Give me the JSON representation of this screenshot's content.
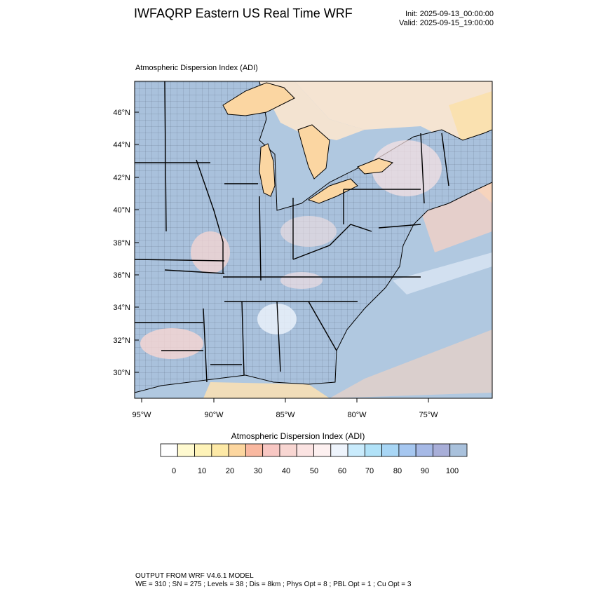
{
  "header": {
    "title": "IWFAQRP Eastern US Real Time WRF",
    "init": "Init: 2025-09-13_00:00:00",
    "valid": "Valid: 2025-09-15_19:00:00"
  },
  "map": {
    "subtitle": "Atmospheric Dispersion Index   (ADI)",
    "lat_labels": [
      "46°N",
      "44°N",
      "42°N",
      "40°N",
      "38°N",
      "36°N",
      "34°N",
      "32°N",
      "30°N"
    ],
    "lon_labels": [
      "95°W",
      "90°W",
      "85°W",
      "80°W",
      "75°W"
    ],
    "colors": {
      "ocean": "#b0c8e0",
      "land_high_adi": "#a9c1dc",
      "lake": "#fbd6a2",
      "warm": "#fde1c7",
      "border": "#000000"
    }
  },
  "colorbar": {
    "title": "Atmospheric Dispersion Index  (ADI)",
    "labels": [
      "0",
      "10",
      "20",
      "30",
      "40",
      "50",
      "60",
      "70",
      "80",
      "90",
      "100"
    ],
    "colors": [
      "#ffffff",
      "#fffad0",
      "#fef3b8",
      "#fde9a6",
      "#fcd69f",
      "#f9b8a0",
      "#f8c7c3",
      "#f8d6d2",
      "#fbe3e2",
      "#fdf0f0",
      "#eef4fc",
      "#c9ebfc",
      "#b1e2f8",
      "#a8d6f5",
      "#a6c7f0",
      "#a6b9e6",
      "#a8aed8",
      "#a9c1dc"
    ]
  },
  "footer": {
    "line1": "OUTPUT FROM WRF V4.6.1 MODEL",
    "line2": "WE = 310 ; SN = 275 ; Levels = 38 ; Dis = 8km ; Phys Opt = 8 ; PBL Opt = 1 ; Cu Opt = 3"
  }
}
